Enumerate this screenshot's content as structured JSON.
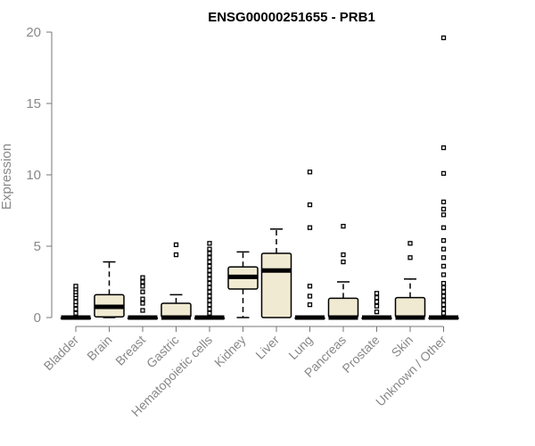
{
  "chart_data": {
    "type": "box",
    "title": "ENSG00000251655 - PRB1",
    "xlabel": "",
    "ylabel": "Expression",
    "ylim": [
      0,
      20
    ],
    "yticks": [
      0,
      5,
      10,
      15,
      20
    ],
    "box_fill": "#f0ead2",
    "categories": [
      "Bladder",
      "Brain",
      "Breast",
      "Gastric",
      "Hematopoietic cells",
      "Kidney",
      "Liver",
      "Lung",
      "Pancreas",
      "Prostate",
      "Skin",
      "Unknown / Other"
    ],
    "boxes": [
      {
        "category": "Bladder",
        "min": 0,
        "q1": 0,
        "median": 0,
        "q3": 0,
        "max": 0,
        "outliers": [
          0.3,
          0.6,
          0.9,
          1.1,
          1.4,
          1.6,
          1.8,
          2.0,
          2.2
        ]
      },
      {
        "category": "Brain",
        "min": 0,
        "q1": 0.05,
        "median": 0.75,
        "q3": 1.6,
        "max": 3.9,
        "outliers": []
      },
      {
        "category": "Breast",
        "min": 0,
        "q1": 0,
        "median": 0,
        "q3": 0,
        "max": 0,
        "outliers": [
          0.5,
          1.0,
          1.3,
          1.8,
          2.2,
          2.5,
          2.8
        ]
      },
      {
        "category": "Gastric",
        "min": 0,
        "q1": 0,
        "median": 0,
        "q3": 1.0,
        "max": 1.6,
        "outliers": [
          4.4,
          5.1
        ]
      },
      {
        "category": "Hematopoietic cells",
        "min": 0,
        "q1": 0,
        "median": 0,
        "q3": 0,
        "max": 0,
        "outliers": [
          0.3,
          0.6,
          0.9,
          1.2,
          1.5,
          1.8,
          2.1,
          2.4,
          2.7,
          3.0,
          3.3,
          3.6,
          3.9,
          4.2,
          4.5,
          4.8,
          5.2
        ]
      },
      {
        "category": "Kidney",
        "min": 0,
        "q1": 2.0,
        "median": 2.85,
        "q3": 3.55,
        "max": 4.6,
        "outliers": []
      },
      {
        "category": "Liver",
        "min": 0,
        "q1": 0,
        "median": 3.3,
        "q3": 4.5,
        "max": 6.2,
        "outliers": []
      },
      {
        "category": "Lung",
        "min": 0,
        "q1": 0,
        "median": 0,
        "q3": 0,
        "max": 0,
        "outliers": [
          0.9,
          1.5,
          2.2,
          6.3,
          7.9,
          10.2
        ]
      },
      {
        "category": "Pancreas",
        "min": 0,
        "q1": 0,
        "median": 0,
        "q3": 1.35,
        "max": 2.5,
        "outliers": [
          3.9,
          4.4,
          6.4
        ]
      },
      {
        "category": "Prostate",
        "min": 0,
        "q1": 0,
        "median": 0,
        "q3": 0,
        "max": 0,
        "outliers": [
          0.4,
          0.8,
          1.1,
          1.4,
          1.7
        ]
      },
      {
        "category": "Skin",
        "min": 0,
        "q1": 0,
        "median": 0,
        "q3": 1.4,
        "max": 2.7,
        "outliers": [
          4.2,
          5.2
        ]
      },
      {
        "category": "Unknown / Other",
        "min": 0,
        "q1": 0,
        "median": 0,
        "q3": 0,
        "max": 0,
        "outliers": [
          0.3,
          0.6,
          0.9,
          1.2,
          1.5,
          1.8,
          2.1,
          2.4,
          3.0,
          3.6,
          4.2,
          4.8,
          5.4,
          6.3,
          7.2,
          7.6,
          8.1,
          10.1,
          11.9,
          19.6
        ]
      }
    ]
  }
}
